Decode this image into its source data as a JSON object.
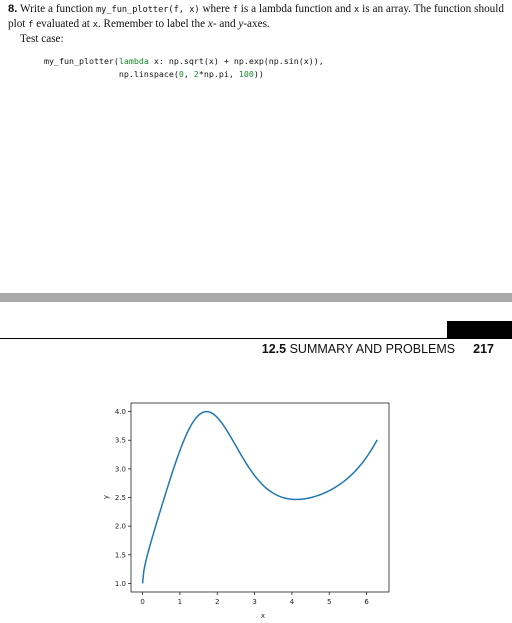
{
  "problem": {
    "number": "8.",
    "t1": "Write a function ",
    "c1": "my_fun_plotter(f, x)",
    "t2": " where ",
    "c2": "f",
    "t3": " is a lambda function and ",
    "c3": "x",
    "t4": " is an array. The function should plot ",
    "c4": "f",
    "t5": " evaluated at ",
    "c5": "x",
    "t6": ". Remember to label the ",
    "t7": "x",
    "t8": "- and ",
    "t9": "y",
    "t10": "-axes.",
    "test_label": "Test case:"
  },
  "code": {
    "l1a": "my_fun_plotter(",
    "l1b": "lambda",
    "l1c": " x: np.sqrt(x) + np.exp(np.sin(x)),",
    "l2a": "               np.linspace(",
    "l2b": "0",
    "l2c": ", ",
    "l2d": "2",
    "l2e": "*np.pi, ",
    "l2f": "100",
    "l2g": "))"
  },
  "running_head": {
    "section": "12.5",
    "title": " SUMMARY AND PROBLEMS",
    "page": "217"
  },
  "chart_data": {
    "type": "line",
    "xlabel": "x",
    "ylabel": "y",
    "xlim": [
      -0.31,
      6.6
    ],
    "ylim": [
      0.85,
      4.15
    ],
    "xticks": [
      0,
      1,
      2,
      3,
      4,
      5,
      6
    ],
    "yticks": [
      1.0,
      1.5,
      2.0,
      2.5,
      3.0,
      3.5,
      4.0
    ],
    "ytick_labels": [
      "1.0",
      "1.5",
      "2.0",
      "2.5",
      "3.0",
      "3.5",
      "4.0"
    ],
    "line_color": "#1f77b4",
    "series": [
      {
        "function": "sqrt(x) + exp(sin(x))",
        "x": [
          0,
          0.05,
          0.1,
          0.2,
          0.3,
          0.5,
          0.75,
          1.0,
          1.25,
          1.5,
          1.75,
          2.0,
          2.25,
          2.5,
          2.75,
          3.0,
          3.25,
          3.5,
          3.75,
          4.0,
          4.25,
          4.5,
          4.75,
          5.0,
          5.25,
          5.5,
          5.75,
          6.0,
          6.283
        ],
        "y": [
          1.0,
          1.28,
          1.42,
          1.67,
          1.9,
          2.32,
          2.85,
          3.32,
          3.67,
          3.94,
          3.97,
          3.9,
          3.6,
          3.4,
          3.13,
          2.88,
          2.7,
          2.57,
          2.51,
          2.47,
          2.48,
          2.5,
          2.55,
          2.62,
          2.73,
          2.85,
          3.05,
          3.2,
          3.51
        ]
      }
    ]
  }
}
